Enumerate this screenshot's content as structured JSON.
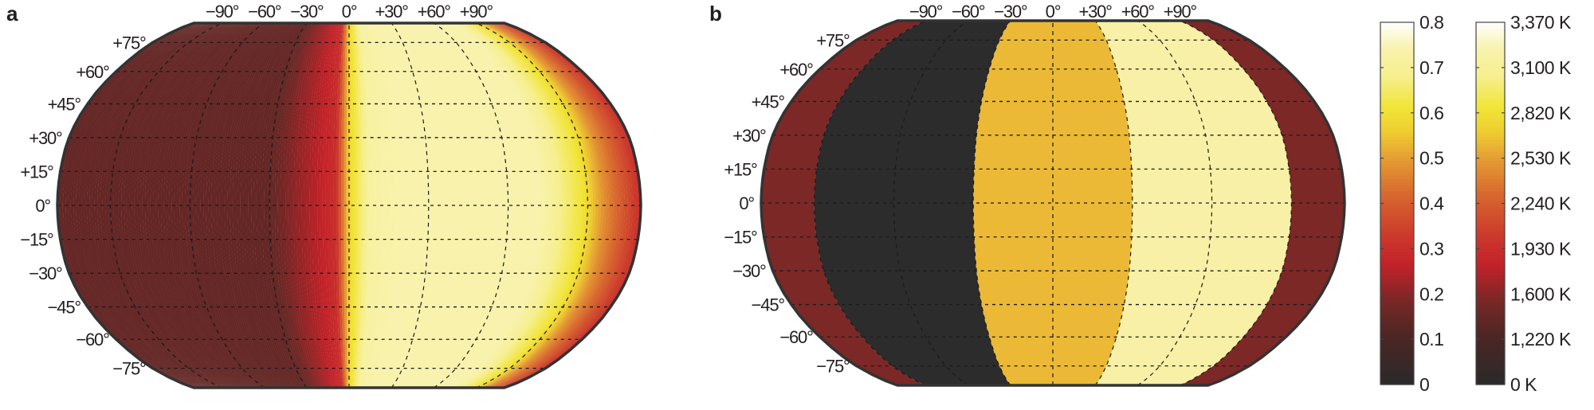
{
  "chart_data": [
    {
      "type": "heatmap",
      "panel": "a",
      "title": "",
      "projection": "Robinson",
      "lon_ticks": [
        "−90°",
        "−60°",
        "−30°",
        "0°",
        "+30°",
        "+60°",
        "+90°"
      ],
      "lon_tick_values": [
        -90,
        -60,
        -30,
        0,
        30,
        60,
        90
      ],
      "lat_ticks": [
        "+75°",
        "+60°",
        "+45°",
        "+30°",
        "+15°",
        "0°",
        "−15°",
        "−30°",
        "−45°",
        "−60°",
        "−75°"
      ],
      "lat_tick_values": [
        75,
        60,
        45,
        30,
        15,
        0,
        -15,
        -30,
        -45,
        -60,
        -75
      ],
      "lon_range": [
        -110,
        110
      ],
      "value_profile_by_lon": [
        [
          -110,
          0.15
        ],
        [
          -30,
          0.15
        ],
        [
          -5,
          0.3
        ],
        [
          0,
          0.58
        ],
        [
          8,
          0.72
        ],
        [
          20,
          0.74
        ],
        [
          72,
          0.74
        ],
        [
          88,
          0.61
        ],
        [
          96,
          0.48
        ],
        [
          110,
          0.3
        ]
      ],
      "colorbar": "a_scale"
    },
    {
      "type": "heatmap",
      "panel": "b",
      "title": "",
      "projection": "Robinson",
      "lon_ticks": [
        "−90°",
        "−60°",
        "−30°",
        "0°",
        "+30°",
        "+60°",
        "+90°"
      ],
      "lon_tick_values": [
        -90,
        -60,
        -30,
        0,
        30,
        60,
        90
      ],
      "lat_ticks": [
        "+75°",
        "+60°",
        "+45°",
        "+30°",
        "+15°",
        "0°",
        "−15°",
        "−30°",
        "−45°",
        "−60°",
        "−75°"
      ],
      "lat_tick_values": [
        75,
        60,
        45,
        30,
        15,
        0,
        -15,
        -30,
        -45,
        -60,
        -75
      ],
      "lon_range": [
        -110,
        110
      ],
      "zones": [
        {
          "from": -110,
          "to": -90,
          "color": "#7c2826"
        },
        {
          "from": -90,
          "to": -30,
          "color": "#2d2c2c"
        },
        {
          "from": -30,
          "to": 30,
          "color": "#ebb935"
        },
        {
          "from": 30,
          "to": 90,
          "color": "#f8f0a6"
        },
        {
          "from": 90,
          "to": 110,
          "color": "#7c2826"
        }
      ]
    },
    {
      "type": "colorbar",
      "name": "a_scale",
      "range": [
        0,
        0.8
      ],
      "tick_labels": [
        "0.8",
        "0.7",
        "0.6",
        "0.5",
        "0.4",
        "0.3",
        "0.2",
        "0.1",
        "0"
      ]
    },
    {
      "type": "colorbar",
      "name": "temperature",
      "range": [
        0,
        3370
      ],
      "tick_labels": [
        "3,370 K",
        "3,100 K",
        "2,820 K",
        "2,530 K",
        "2,240 K",
        "1,930 K",
        "1,600 K",
        "1,220 K",
        "0 K"
      ]
    }
  ],
  "colormap": [
    [
      0,
      "#2a2a2a"
    ],
    [
      0.1,
      "#4a2624"
    ],
    [
      0.17,
      "#6e2826"
    ],
    [
      0.22,
      "#9a2427"
    ],
    [
      0.27,
      "#c4232a"
    ],
    [
      0.33,
      "#cc3a2c"
    ],
    [
      0.42,
      "#d8682f"
    ],
    [
      0.5,
      "#e59e33"
    ],
    [
      0.56,
      "#efcf30"
    ],
    [
      0.61,
      "#f1e436"
    ],
    [
      0.68,
      "#f6ef8e"
    ],
    [
      0.74,
      "#f8f2ac"
    ],
    [
      0.8,
      "#ffffff"
    ]
  ],
  "colors": {
    "outline": "#333333",
    "grid": "#1a1a1a"
  }
}
